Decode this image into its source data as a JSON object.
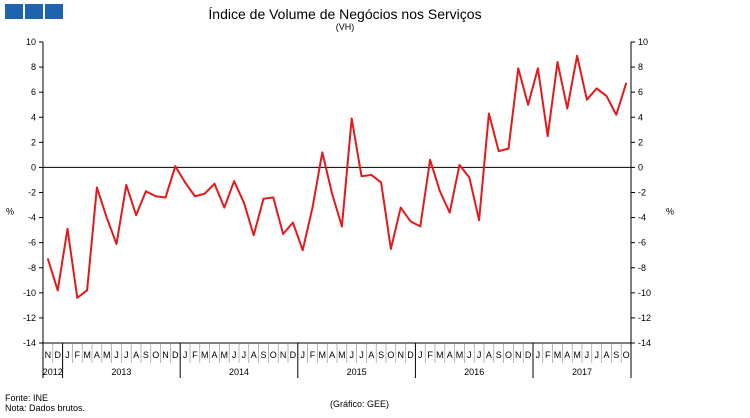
{
  "header": {
    "title": "Índice de Volume de Negócios nos Serviços",
    "subtitle": "(VH)"
  },
  "footer": {
    "source": "Fonte: INE",
    "note": "Nota: Dados brutos.",
    "credit": "(Gráfico: GEE)"
  },
  "logo": {
    "icon": "ine-logo-squares",
    "color": "#1f63ae"
  },
  "chart_data": {
    "type": "line",
    "title": "Índice de Volume de Negócios nos Serviços",
    "subtitle": "(VH)",
    "ylabel_left": "%",
    "ylabel_right": "%",
    "ylim": [
      -14,
      10
    ],
    "yticks": [
      10,
      8,
      6,
      4,
      2,
      0,
      -2,
      -4,
      -6,
      -8,
      -10,
      -12,
      -14
    ],
    "grid": false,
    "color": "#e31a1c",
    "x": [
      "N",
      "D",
      "J",
      "F",
      "M",
      "A",
      "M",
      "J",
      "J",
      "A",
      "S",
      "O",
      "N",
      "D",
      "J",
      "F",
      "M",
      "A",
      "M",
      "J",
      "J",
      "A",
      "S",
      "O",
      "N",
      "D",
      "J",
      "F",
      "M",
      "A",
      "M",
      "J",
      "J",
      "A",
      "S",
      "O",
      "N",
      "D",
      "J",
      "F",
      "M",
      "A",
      "M",
      "J",
      "J",
      "A",
      "S",
      "O",
      "N",
      "D",
      "J",
      "F",
      "M",
      "A",
      "M",
      "J",
      "J",
      "A",
      "S",
      "O"
    ],
    "years": [
      {
        "label": "2012",
        "start": 0,
        "count": 2
      },
      {
        "label": "2013",
        "start": 2,
        "count": 12
      },
      {
        "label": "2014",
        "start": 14,
        "count": 12
      },
      {
        "label": "2015",
        "start": 26,
        "count": 12
      },
      {
        "label": "2016",
        "start": 38,
        "count": 12
      },
      {
        "label": "2017",
        "start": 50,
        "count": 10
      }
    ],
    "series": [
      {
        "values": [
          -7.3,
          -9.8,
          -4.9,
          -10.4,
          -9.8,
          -1.6,
          -4.0,
          -6.1,
          -1.4,
          -3.8,
          -1.9,
          -2.3,
          -2.4,
          0.1,
          -1.2,
          -2.3,
          -2.1,
          -1.3,
          -3.2,
          -1.1,
          -2.8,
          -5.4,
          -2.5,
          -2.4,
          -5.3,
          -4.4,
          -6.6,
          -3.2,
          1.2,
          -2.1,
          -4.7,
          3.9,
          -0.7,
          -0.6,
          -1.2,
          -6.5,
          -3.2,
          -4.3,
          -4.7,
          0.6,
          -1.9,
          -3.6,
          0.2,
          -0.8,
          -4.2,
          4.3,
          1.3,
          1.5,
          7.9,
          5.0,
          7.9,
          2.5,
          8.4,
          4.7,
          8.9,
          5.4,
          6.3,
          5.7,
          4.2,
          6.7
        ]
      }
    ]
  }
}
